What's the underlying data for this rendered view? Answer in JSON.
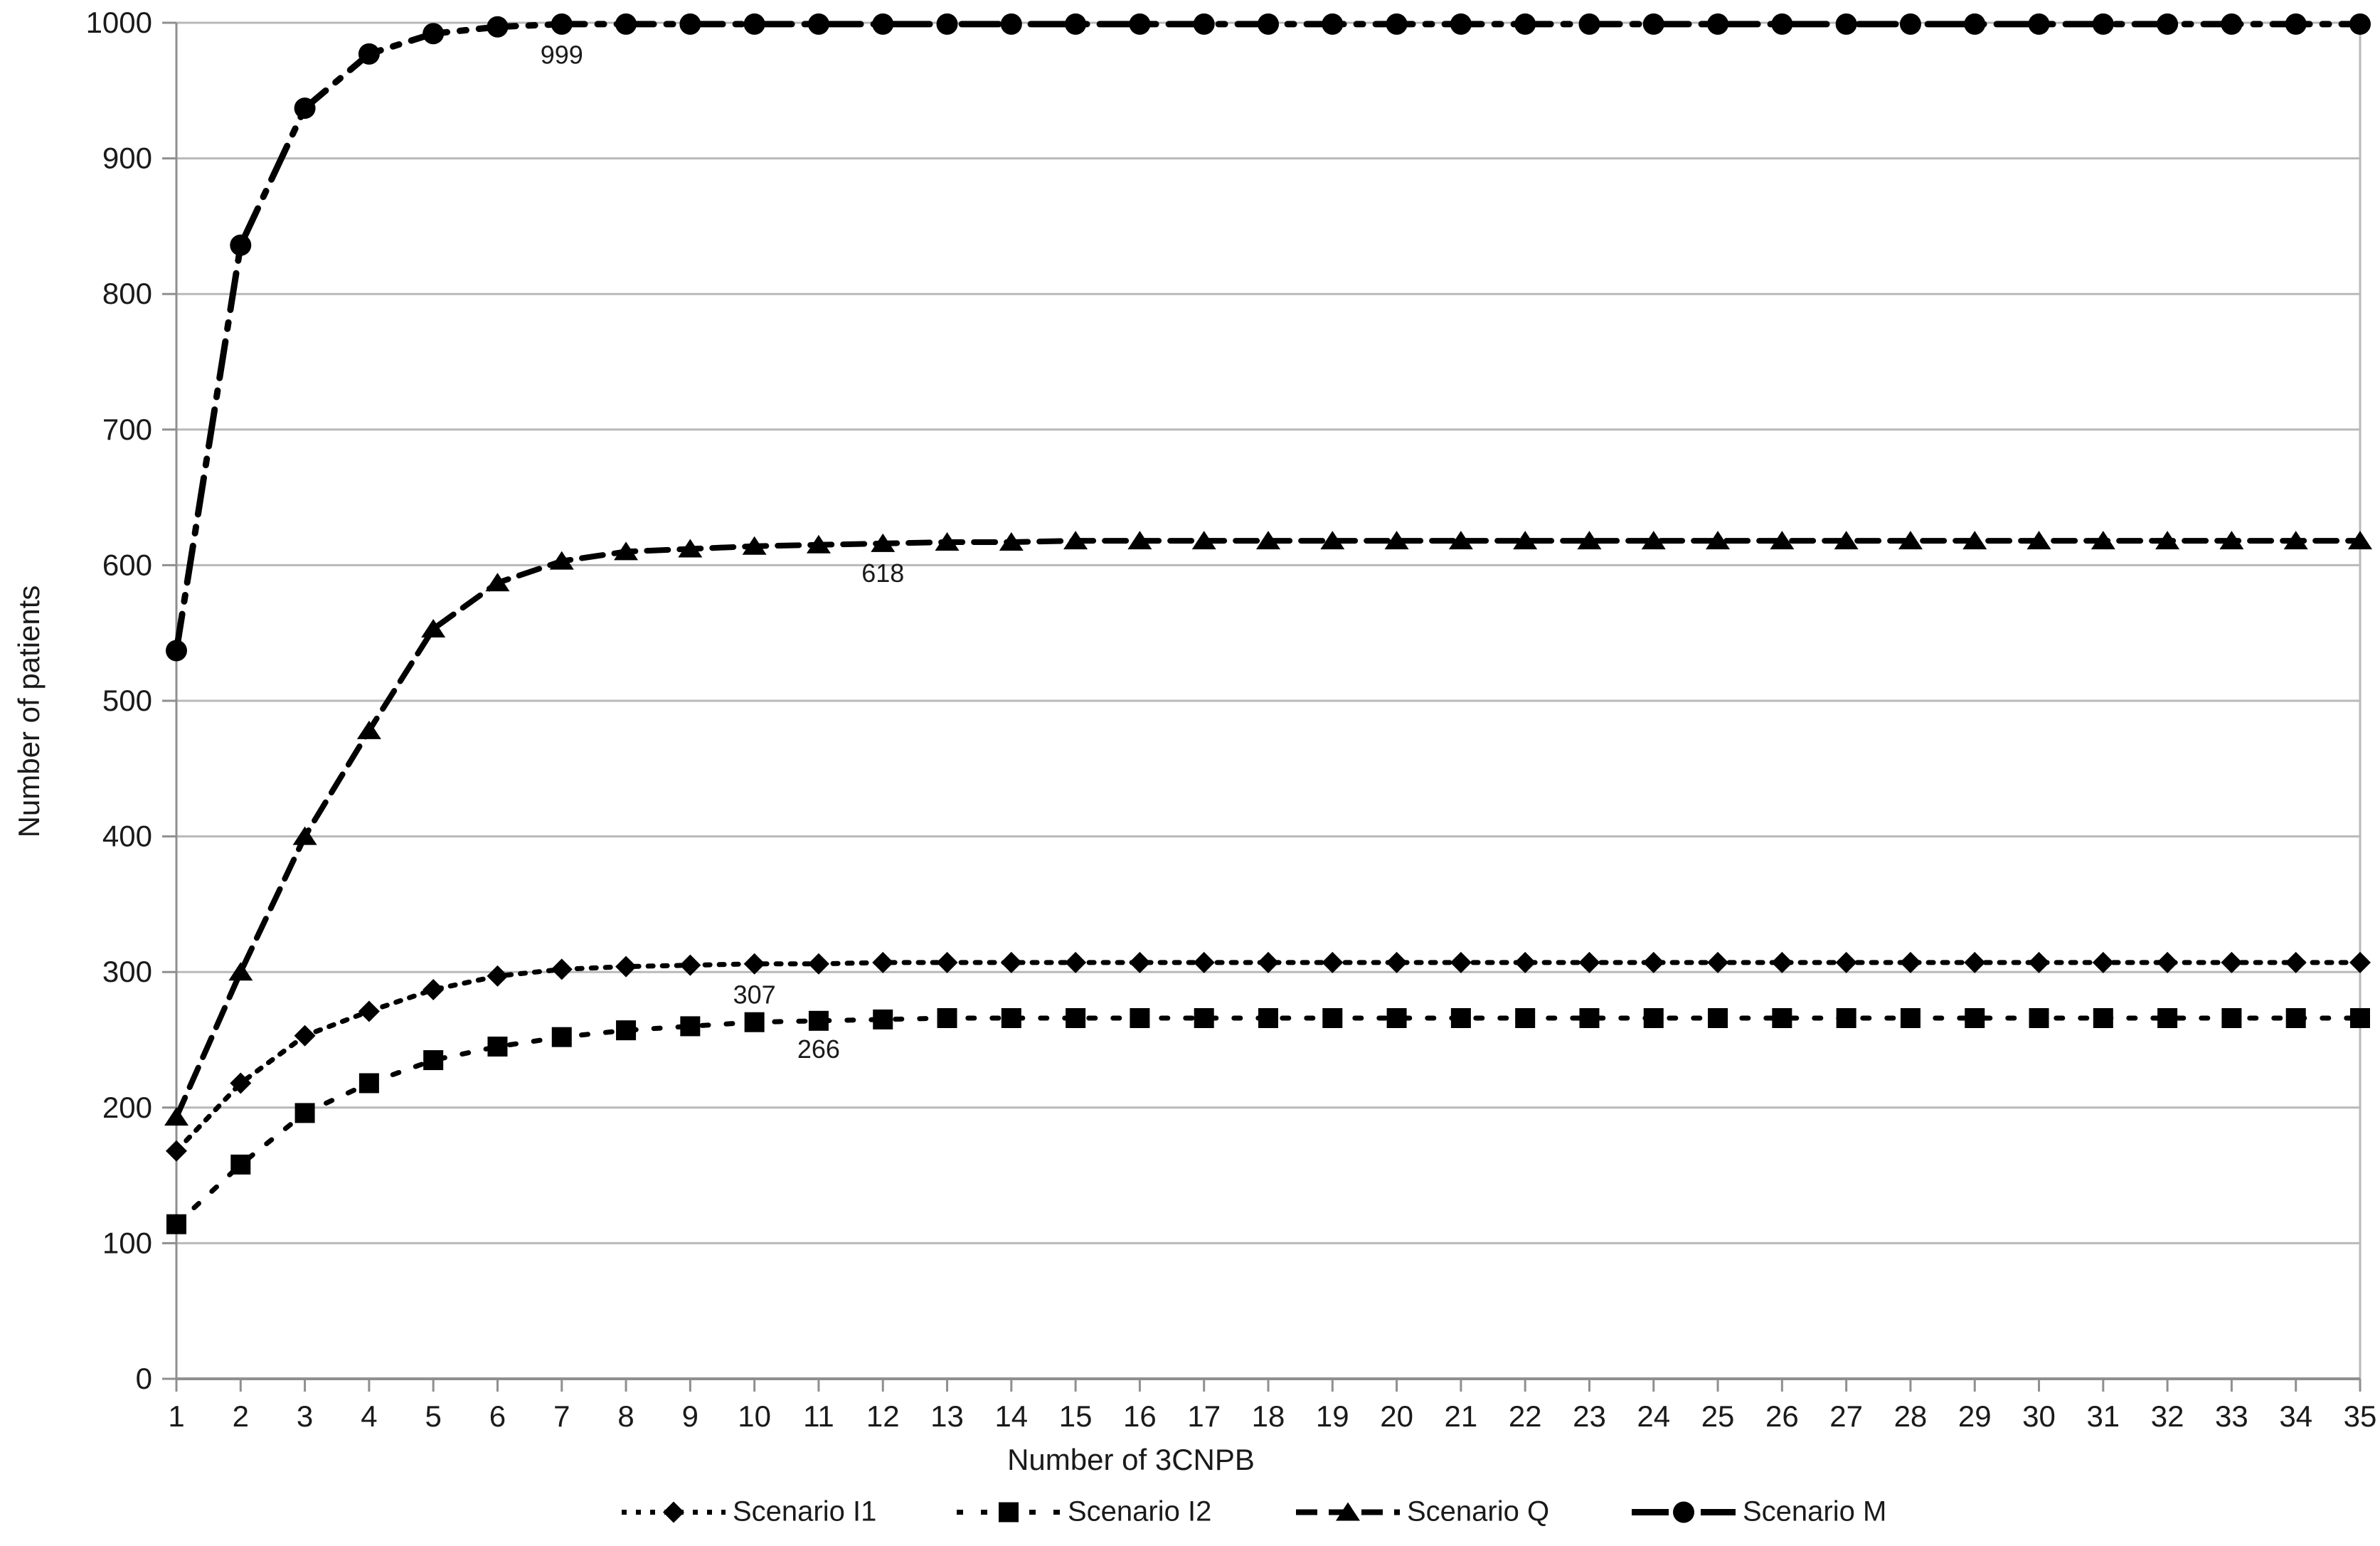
{
  "colors": {
    "series": "#000000",
    "gridline": "#b9b9b9",
    "axis": "#8f8f8f",
    "text": "#1a1a1a",
    "background": "#ffffff"
  },
  "chart_data": {
    "type": "line",
    "title": "",
    "xlabel": "Number of 3CNPB",
    "ylabel": "Number of patients",
    "x": [
      1,
      2,
      3,
      4,
      5,
      6,
      7,
      8,
      9,
      10,
      11,
      12,
      13,
      14,
      15,
      16,
      17,
      18,
      19,
      20,
      21,
      22,
      23,
      24,
      25,
      26,
      27,
      28,
      29,
      30,
      31,
      32,
      33,
      34,
      35
    ],
    "xlim": [
      1,
      35
    ],
    "ylim": [
      0,
      1000
    ],
    "y_tick_step": 100,
    "y_ticks": [
      0,
      100,
      200,
      300,
      400,
      500,
      600,
      700,
      800,
      900,
      1000
    ],
    "grid": "horizontal",
    "legend_position": "bottom",
    "series": [
      {
        "name": "Scenario I1",
        "marker": "diamond",
        "dash": "dotted",
        "values": [
          168,
          218,
          253,
          271,
          287,
          297,
          302,
          304,
          305,
          306,
          306,
          307,
          307,
          307,
          307,
          307,
          307,
          307,
          307,
          307,
          307,
          307,
          307,
          307,
          307,
          307,
          307,
          307,
          307,
          307,
          307,
          307,
          307,
          307,
          307
        ]
      },
      {
        "name": "Scenario I2",
        "marker": "square",
        "dash": "sparse-dot",
        "values": [
          114,
          158,
          196,
          218,
          235,
          245,
          252,
          257,
          260,
          263,
          264,
          265,
          266,
          266,
          266,
          266,
          266,
          266,
          266,
          266,
          266,
          266,
          266,
          266,
          266,
          266,
          266,
          266,
          266,
          266,
          266,
          266,
          266,
          266,
          266
        ]
      },
      {
        "name": "Scenario Q",
        "marker": "triangle",
        "dash": "dashed",
        "values": [
          193,
          300,
          400,
          478,
          553,
          587,
          603,
          610,
          612,
          614,
          615,
          616,
          617,
          617,
          618,
          618,
          618,
          618,
          618,
          618,
          618,
          618,
          618,
          618,
          618,
          618,
          618,
          618,
          618,
          618,
          618,
          618,
          618,
          618,
          618
        ]
      },
      {
        "name": "Scenario M",
        "marker": "circle",
        "dash": "dash-dot",
        "values": [
          537,
          836,
          937,
          977,
          992,
          997,
          999,
          999,
          999,
          999,
          999,
          999,
          999,
          999,
          999,
          999,
          999,
          999,
          999,
          999,
          999,
          999,
          999,
          999,
          999,
          999,
          999,
          999,
          999,
          999,
          999,
          999,
          999,
          999,
          999
        ]
      }
    ],
    "annotations": [
      {
        "text": "999",
        "x": 7,
        "y": 976
      },
      {
        "text": "618",
        "x": 12,
        "y": 594
      },
      {
        "text": "307",
        "x": 10,
        "y": 283
      },
      {
        "text": "266",
        "x": 11,
        "y": 243
      }
    ]
  }
}
